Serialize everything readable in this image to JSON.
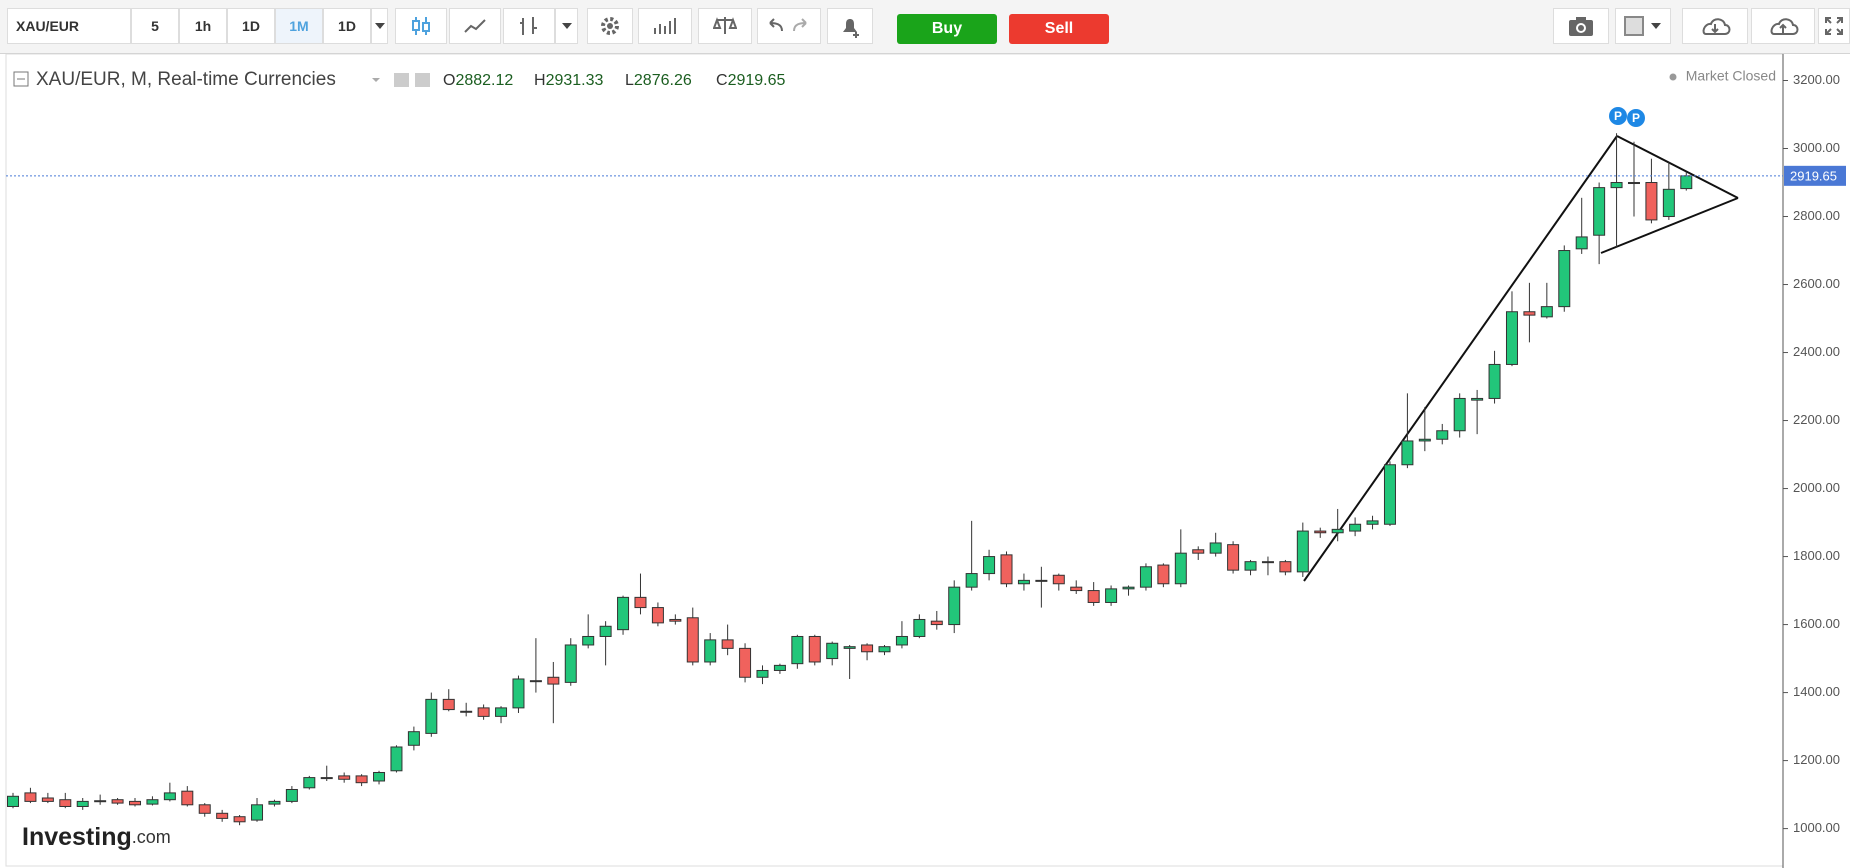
{
  "toolbar": {
    "symbol": "XAU/EUR",
    "intervals": [
      "5",
      "1h",
      "1D",
      "1M",
      "1D"
    ],
    "active_interval": 3,
    "buy": "Buy",
    "sell": "Sell"
  },
  "chart_data": {
    "type": "candlestick",
    "title": "XAU/EUR, M, Real-time Currencies",
    "status": "Market Closed",
    "ohlc_labels": [
      "O",
      "H",
      "L",
      "C"
    ],
    "open": [
      1065,
      1105,
      1090,
      1085,
      1065,
      1082,
      1085,
      1080,
      1072,
      1085,
      1110,
      1070,
      1045,
      1035,
      1025,
      1072,
      1080,
      1120,
      1150,
      1155,
      1155,
      1140,
      1170,
      1245,
      1280,
      1380,
      1345,
      1355,
      1330,
      1355,
      1435,
      1445,
      1430,
      1540,
      1565,
      1585,
      1680,
      1650,
      1615,
      1620,
      1490,
      1555,
      1530,
      1445,
      1465,
      1485,
      1565,
      1500,
      1530,
      1540,
      1520,
      1540,
      1565,
      1610,
      1600,
      1710,
      1750,
      1805,
      1720,
      1730,
      1745,
      1710,
      1700,
      1665,
      1705,
      1710,
      1775,
      1720,
      1820,
      1810,
      1835,
      1760,
      1785,
      1785,
      1755,
      1875,
      1870,
      1875,
      1895,
      1895,
      2070,
      2140,
      2145,
      2170,
      2260,
      2265,
      2365,
      2520,
      2505,
      2535,
      2705,
      2745,
      2885,
      2900,
      2900,
      2800,
      2882.12
    ],
    "high": [
      1105,
      1120,
      1105,
      1105,
      1090,
      1100,
      1090,
      1090,
      1095,
      1135,
      1125,
      1075,
      1055,
      1040,
      1090,
      1085,
      1125,
      1155,
      1185,
      1165,
      1160,
      1170,
      1245,
      1300,
      1400,
      1410,
      1370,
      1365,
      1360,
      1450,
      1560,
      1490,
      1560,
      1630,
      1610,
      1685,
      1750,
      1665,
      1630,
      1650,
      1575,
      1600,
      1545,
      1480,
      1485,
      1570,
      1570,
      1550,
      1540,
      1545,
      1540,
      1610,
      1630,
      1640,
      1730,
      1905,
      1820,
      1815,
      1750,
      1770,
      1750,
      1730,
      1725,
      1715,
      1715,
      1780,
      1780,
      1880,
      1830,
      1870,
      1845,
      1790,
      1800,
      1790,
      1900,
      1885,
      1940,
      1915,
      1920,
      2080,
      2280,
      2240,
      2190,
      2280,
      2290,
      2405,
      2580,
      2605,
      2605,
      2715,
      2855,
      2900,
      3045,
      3020,
      2970,
      2960,
      2931.33
    ],
    "low": [
      1060,
      1075,
      1075,
      1060,
      1055,
      1070,
      1070,
      1065,
      1068,
      1080,
      1065,
      1035,
      1020,
      1010,
      1020,
      1065,
      1075,
      1115,
      1140,
      1135,
      1125,
      1130,
      1165,
      1230,
      1270,
      1345,
      1330,
      1320,
      1310,
      1340,
      1400,
      1310,
      1420,
      1530,
      1480,
      1570,
      1630,
      1595,
      1600,
      1480,
      1480,
      1510,
      1430,
      1425,
      1455,
      1470,
      1480,
      1480,
      1440,
      1495,
      1510,
      1530,
      1560,
      1585,
      1575,
      1700,
      1730,
      1710,
      1700,
      1650,
      1700,
      1690,
      1655,
      1655,
      1685,
      1700,
      1710,
      1710,
      1790,
      1800,
      1750,
      1745,
      1745,
      1745,
      1740,
      1855,
      1845,
      1860,
      1880,
      1890,
      2060,
      2110,
      2130,
      2150,
      2160,
      2250,
      2360,
      2430,
      2500,
      2520,
      2690,
      2660,
      2710,
      2800,
      2780,
      2790,
      2876.26
    ],
    "close": [
      1095,
      1080,
      1080,
      1065,
      1080,
      1080,
      1075,
      1070,
      1085,
      1105,
      1070,
      1045,
      1030,
      1020,
      1070,
      1080,
      1115,
      1150,
      1150,
      1145,
      1135,
      1165,
      1240,
      1285,
      1380,
      1350,
      1345,
      1330,
      1355,
      1440,
      1435,
      1425,
      1540,
      1565,
      1595,
      1680,
      1650,
      1605,
      1610,
      1490,
      1555,
      1530,
      1445,
      1465,
      1480,
      1565,
      1490,
      1545,
      1535,
      1520,
      1535,
      1565,
      1615,
      1600,
      1710,
      1750,
      1800,
      1720,
      1730,
      1730,
      1720,
      1700,
      1665,
      1705,
      1710,
      1770,
      1720,
      1810,
      1810,
      1840,
      1760,
      1785,
      1785,
      1755,
      1875,
      1870,
      1880,
      1895,
      1905,
      2070,
      2140,
      2145,
      2170,
      2265,
      2265,
      2365,
      2520,
      2510,
      2535,
      2700,
      2740,
      2885,
      2900,
      2900,
      2790,
      2880,
      2919.65
    ],
    "up_color": "#22c67a",
    "down_color": "#f0625d",
    "ylim": [
      890,
      3275
    ],
    "yticks": [
      {
        "value": 1000,
        "label": "1000.00"
      },
      {
        "value": 1200,
        "label": "1200.00"
      },
      {
        "value": 1400,
        "label": "1400.00"
      },
      {
        "value": 1600,
        "label": "1600.00"
      },
      {
        "value": 1800,
        "label": "1800.00"
      },
      {
        "value": 2000,
        "label": "2000.00"
      },
      {
        "value": 2200,
        "label": "2200.00"
      },
      {
        "value": 2400,
        "label": "2400.00"
      },
      {
        "value": 2600,
        "label": "2600.00"
      },
      {
        "value": 2800,
        "label": "2800.00"
      },
      {
        "value": 3000,
        "label": "3000.00"
      },
      {
        "value": 3200,
        "label": "3200.00"
      }
    ],
    "markers": [
      "P",
      "P"
    ]
  },
  "branding": {
    "logo": "Investing",
    "suffix": ".com"
  }
}
